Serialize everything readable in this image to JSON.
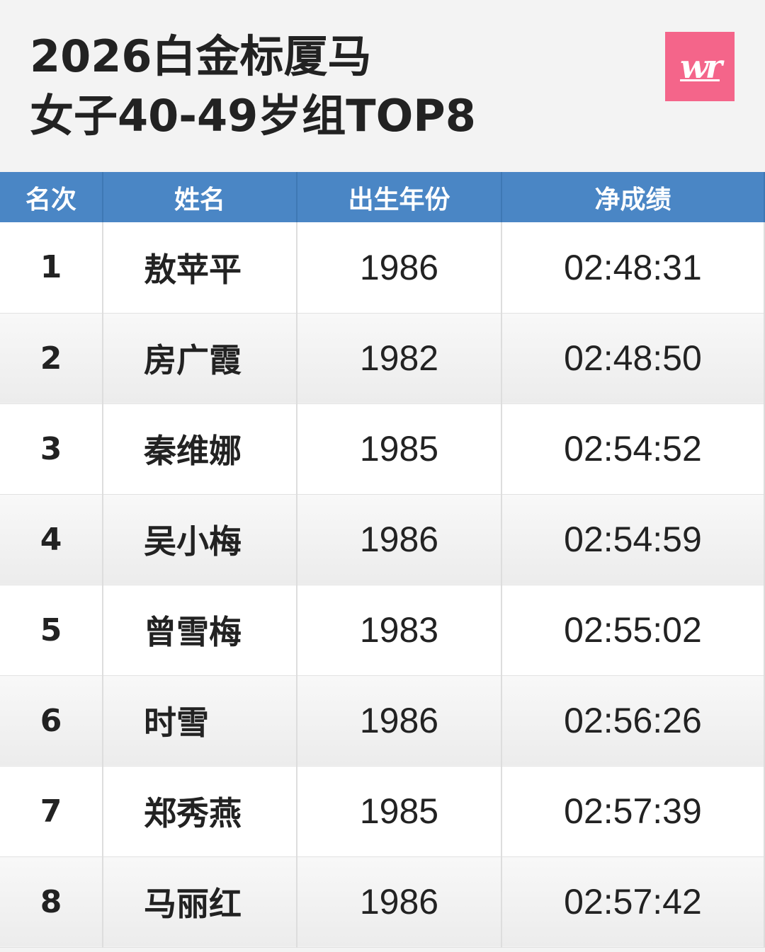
{
  "title": {
    "line1": "2026白金标厦马",
    "line2": "女子40-49岁组TOP8"
  },
  "logo": {
    "text": "wr",
    "color": "#f4658a"
  },
  "table": {
    "headers": [
      "名次",
      "姓名",
      "出生年份",
      "净成绩"
    ],
    "header_color": "#4a86c5",
    "rows": [
      {
        "rank": "1",
        "name": "敖苹平",
        "birth_year": "1986",
        "net_time": "02:48:31"
      },
      {
        "rank": "2",
        "name": "房广霞",
        "birth_year": "1982",
        "net_time": "02:48:50"
      },
      {
        "rank": "3",
        "name": "秦维娜",
        "birth_year": "1985",
        "net_time": "02:54:52"
      },
      {
        "rank": "4",
        "name": "吴小梅",
        "birth_year": "1986",
        "net_time": "02:54:59"
      },
      {
        "rank": "5",
        "name": "曾雪梅",
        "birth_year": "1983",
        "net_time": "02:55:02"
      },
      {
        "rank": "6",
        "name": "时雪",
        "birth_year": "1986",
        "net_time": "02:56:26"
      },
      {
        "rank": "7",
        "name": "郑秀燕",
        "birth_year": "1985",
        "net_time": "02:57:39"
      },
      {
        "rank": "8",
        "name": "马丽红",
        "birth_year": "1986",
        "net_time": "02:57:42"
      }
    ]
  }
}
